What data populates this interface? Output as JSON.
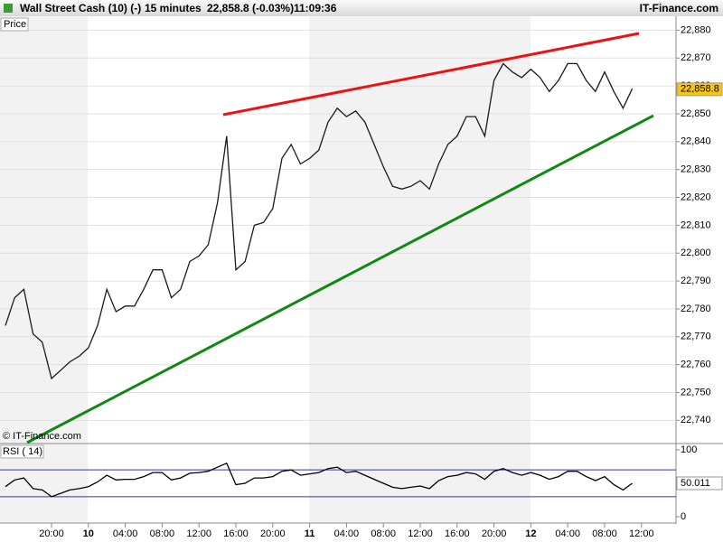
{
  "header": {
    "instrument": "Wall Street Cash (10) (-)",
    "timeframe": "15 minutes",
    "quote": "22,858.8 (-0.03%)",
    "time": "11:09:36",
    "brand": "IT-Finance.com"
  },
  "chart_data": [
    {
      "type": "line",
      "title": "Price",
      "watermark": "© IT-Finance.com",
      "color": "#1a1a1a",
      "categories": [
        null,
        null,
        null,
        null,
        null,
        "20:00",
        null,
        null,
        null,
        "10",
        null,
        null,
        null,
        "04:00",
        null,
        null,
        null,
        "08:00",
        null,
        null,
        null,
        "12:00",
        null,
        null,
        null,
        "16:00",
        null,
        null,
        null,
        "20:00",
        null,
        null,
        null,
        "11",
        null,
        null,
        null,
        "04:00",
        null,
        null,
        null,
        "08:00",
        null,
        null,
        null,
        "12:00",
        null,
        null,
        null,
        "16:00",
        null,
        null,
        null,
        "20:00",
        null,
        null,
        null,
        "12",
        null,
        null,
        null,
        "04:00",
        null,
        null,
        null,
        "08:00",
        null,
        null,
        null,
        "12:00"
      ],
      "values": [
        22774,
        22784,
        22787,
        22771,
        22768,
        22755,
        22758,
        22761,
        22763,
        22766,
        22774,
        22787,
        22779,
        22781,
        22781,
        22787,
        22794,
        22794,
        22784,
        22787,
        22797,
        22799,
        22803,
        22818,
        22842,
        22794,
        22797,
        22810,
        22811,
        22816,
        22834,
        22839,
        22832,
        22834,
        22837,
        22847,
        22852,
        22849,
        22851,
        22847,
        22839,
        22831,
        22824,
        22823,
        22824,
        22826,
        22823,
        22832,
        22839,
        22842,
        22849,
        22849,
        22842,
        22862,
        22868,
        22865,
        22863,
        22866,
        22863,
        22858,
        22862,
        22868,
        22868,
        22862,
        22858,
        22865,
        22858,
        22852,
        22859,
        null
      ],
      "last_value": {
        "value": 22858.8,
        "label": "22,858.8"
      },
      "ylim": [
        22732,
        22885
      ],
      "yticks": [
        {
          "value": 22740,
          "label": "22,740"
        },
        {
          "value": 22750,
          "label": "22,750"
        },
        {
          "value": 22760,
          "label": "22,760"
        },
        {
          "value": 22770,
          "label": "22,770"
        },
        {
          "value": 22780,
          "label": "22,780"
        },
        {
          "value": 22790,
          "label": "22,790"
        },
        {
          "value": 22800,
          "label": "22,800"
        },
        {
          "value": 22810,
          "label": "22,810"
        },
        {
          "value": 22820,
          "label": "22,820"
        },
        {
          "value": 22830,
          "label": "22,830"
        },
        {
          "value": 22840,
          "label": "22,840"
        },
        {
          "value": 22850,
          "label": "22,850"
        },
        {
          "value": 22860,
          "label": "22,860"
        },
        {
          "value": 22870,
          "label": "22,870"
        },
        {
          "value": 22880,
          "label": "22,880"
        }
      ],
      "grid": true
    },
    {
      "type": "line",
      "title": "RSI ( 14)",
      "color": "#000000",
      "level_color": "#3333aa",
      "values": [
        45,
        55,
        58,
        42,
        40,
        30,
        35,
        40,
        42,
        45,
        52,
        62,
        55,
        56,
        56,
        60,
        66,
        66,
        55,
        58,
        65,
        66,
        68,
        74,
        80,
        48,
        50,
        58,
        58,
        60,
        68,
        70,
        62,
        64,
        66,
        72,
        74,
        66,
        68,
        62,
        56,
        50,
        44,
        42,
        44,
        46,
        42,
        54,
        60,
        62,
        66,
        64,
        56,
        68,
        72,
        66,
        62,
        66,
        62,
        56,
        60,
        68,
        68,
        60,
        54,
        60,
        48,
        40,
        50,
        null
      ],
      "levels": [
        30,
        70
      ],
      "last_value": 50.011,
      "ylim": [
        -8,
        108
      ],
      "yticks": [
        0,
        100
      ]
    }
  ]
}
